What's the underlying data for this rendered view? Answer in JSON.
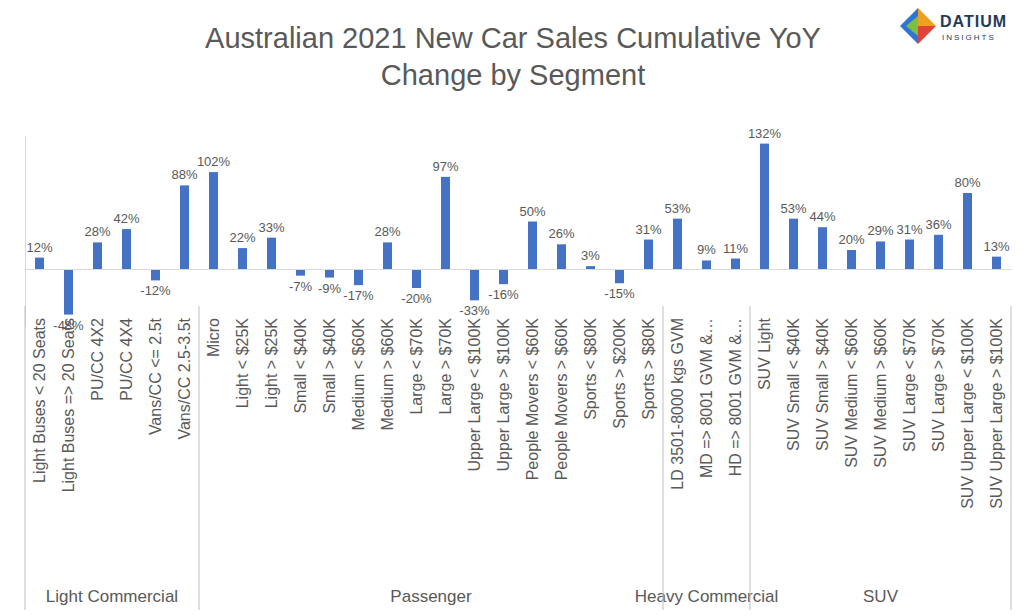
{
  "chart_data": {
    "type": "bar",
    "title": "Australian 2021 New Car Sales Cumulative YoY Change by Segment",
    "annotations": [
      "DATIUM",
      "INSIGHTS"
    ],
    "categories": [
      "Light Buses < 20 Seats",
      "Light Buses => 20 Seats",
      "PU/CC 4X2",
      "PU/CC 4X4",
      "Vans/CC <= 2.5t",
      "Vans/CC 2.5-3.5t",
      "Micro",
      "Light < $25K",
      "Light > $25K",
      "Small < $40K",
      "Small > $40K",
      "Medium < $60K",
      "Medium > $60K",
      "Large < $70K",
      "Large > $70K",
      "Upper Large < $100K",
      "Upper Large > $100K",
      "People Movers < $60K",
      "People Movers > $60K",
      "Sports < $80K",
      "Sports > $200K",
      "Sports > $80K",
      "LD 3501-8000 kgs GVM",
      "MD => 8001 GVM &…",
      "HD => 8001 GVM &…",
      "SUV Light",
      "SUV Small < $40K",
      "SUV Small > $40K",
      "SUV Medium < $60K",
      "SUV Medium > $60K",
      "SUV Large < $70K",
      "SUV Large > $70K",
      "SUV Upper Large < $100K",
      "SUV Upper Large > $100K"
    ],
    "category_groups": [
      "Light Commercial",
      "Light Commercial",
      "Light Commercial",
      "Light Commercial",
      "Light Commercial",
      "Light Commercial",
      "Passenger",
      "Passenger",
      "Passenger",
      "Passenger",
      "Passenger",
      "Passenger",
      "Passenger",
      "Passenger",
      "Passenger",
      "Passenger",
      "Passenger",
      "Passenger",
      "Passenger",
      "Passenger",
      "Passenger",
      "Passenger",
      "Heavy Commercial",
      "Heavy Commercial",
      "Heavy Commercial",
      "SUV",
      "SUV",
      "SUV",
      "SUV",
      "SUV",
      "SUV",
      "SUV",
      "SUV",
      "SUV"
    ],
    "values": [
      12,
      -48,
      28,
      42,
      -12,
      88,
      102,
      22,
      33,
      -7,
      -9,
      -17,
      28,
      -20,
      97,
      -33,
      -16,
      50,
      26,
      3,
      -15,
      31,
      53,
      9,
      11,
      132,
      53,
      44,
      20,
      29,
      31,
      36,
      80,
      13
    ],
    "value_labels": [
      "12%",
      "-48%",
      "28%",
      "42%",
      "-12%",
      "88%",
      "102%",
      "22%",
      "33%",
      "-7%",
      "-9%",
      "-17%",
      "28%",
      "-20%",
      "97%",
      "-33%",
      "-16%",
      "50%",
      "26%",
      "3%",
      "-15%",
      "31%",
      "53%",
      "9%",
      "11%",
      "132%",
      "53%",
      "44%",
      "20%",
      "29%",
      "31%",
      "36%",
      "80%",
      "13%"
    ],
    "color": "#4472c4",
    "ylim": [
      -60,
      140
    ],
    "grid": false,
    "data_labels": true,
    "tick_labels": "x"
  }
}
